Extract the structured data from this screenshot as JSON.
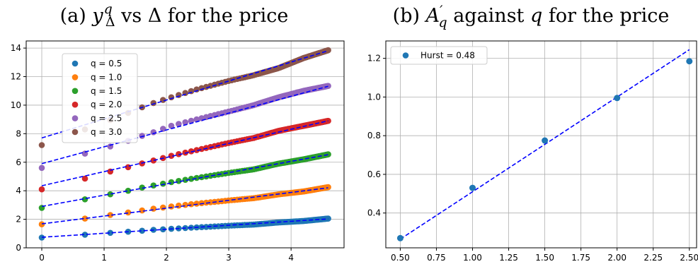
{
  "chart_data": [
    {
      "type": "scatter",
      "title_prefix": "(a) ",
      "title_math": {
        "y": "y",
        "sup": "q",
        "sub": "Δ",
        "mid": " vs ",
        "delta": "Δ",
        "suffix": " for the price"
      },
      "xlim": [
        -0.25,
        4.85
      ],
      "ylim": [
        0,
        14.5
      ],
      "xticks": [
        0,
        1,
        2,
        3,
        4
      ],
      "yticks": [
        0,
        2,
        4,
        6,
        8,
        10,
        12,
        14
      ],
      "grid": true,
      "legend_position": "upper-left",
      "x_points": [
        0,
        0.693,
        1.099,
        1.386,
        1.609,
        1.792,
        1.946,
        2.079,
        2.197,
        2.303,
        2.398,
        2.485,
        2.565,
        2.639,
        2.708,
        2.773,
        2.833,
        2.89,
        2.944,
        2.996,
        3.045,
        3.091,
        3.136,
        3.178,
        3.219,
        3.258,
        3.296,
        3.332,
        3.367,
        3.401,
        3.434,
        3.466,
        3.497,
        3.526,
        3.555,
        3.584,
        3.611,
        3.638,
        3.664,
        3.689,
        3.714,
        3.738,
        3.761,
        3.784,
        3.807,
        3.829,
        3.85,
        3.871,
        3.892,
        3.912,
        3.932,
        3.951,
        3.97,
        3.989,
        4.007,
        4.025,
        4.043,
        4.06,
        4.078,
        4.094,
        4.111,
        4.127,
        4.143,
        4.159,
        4.174,
        4.19,
        4.205,
        4.22,
        4.234,
        4.248,
        4.263,
        4.277,
        4.29,
        4.304,
        4.317,
        4.331,
        4.344,
        4.357,
        4.369,
        4.382,
        4.394,
        4.407,
        4.419,
        4.431,
        4.443,
        4.454,
        4.466,
        4.477,
        4.489,
        4.5,
        4.511,
        4.522,
        4.533,
        4.543,
        4.554,
        4.564,
        4.575,
        4.585,
        4.595
      ],
      "series": [
        {
          "name": "q = 0.5",
          "color": "#1f77b4",
          "curve": [
            [
              0,
              0.72
            ],
            [
              0.693,
              0.92
            ],
            [
              1.099,
              1.05
            ],
            [
              1.386,
              1.13
            ],
            [
              1.609,
              1.2
            ],
            [
              1.792,
              1.26
            ],
            [
              2.079,
              1.33
            ],
            [
              2.485,
              1.43
            ],
            [
              3.0,
              1.55
            ],
            [
              3.4,
              1.63
            ],
            [
              3.8,
              1.78
            ],
            [
              4.2,
              1.88
            ],
            [
              4.595,
              2.05
            ]
          ],
          "fit": {
            "slope": 0.28,
            "intercept": 0.74
          }
        },
        {
          "name": "q = 1.0",
          "color": "#ff7f0e",
          "curve": [
            [
              0,
              1.65
            ],
            [
              0.693,
              2.05
            ],
            [
              1.099,
              2.3
            ],
            [
              1.386,
              2.48
            ],
            [
              1.609,
              2.62
            ],
            [
              1.792,
              2.74
            ],
            [
              2.079,
              2.9
            ],
            [
              2.485,
              3.1
            ],
            [
              3.0,
              3.32
            ],
            [
              3.4,
              3.48
            ],
            [
              3.8,
              3.75
            ],
            [
              4.2,
              3.95
            ],
            [
              4.595,
              4.25
            ]
          ],
          "fit": {
            "slope": 0.55,
            "intercept": 1.68
          }
        },
        {
          "name": "q = 1.5",
          "color": "#2ca02c",
          "curve": [
            [
              0,
              2.8
            ],
            [
              0.693,
              3.4
            ],
            [
              1.099,
              3.75
            ],
            [
              1.386,
              4.0
            ],
            [
              1.609,
              4.22
            ],
            [
              1.792,
              4.37
            ],
            [
              2.079,
              4.6
            ],
            [
              2.485,
              4.9
            ],
            [
              3.0,
              5.25
            ],
            [
              3.4,
              5.5
            ],
            [
              3.8,
              5.9
            ],
            [
              4.2,
              6.2
            ],
            [
              4.595,
              6.55
            ]
          ],
          "fit": {
            "slope": 0.79,
            "intercept": 2.9
          }
        },
        {
          "name": "q = 2.0",
          "color": "#d62728",
          "curve": [
            [
              0,
              4.1
            ],
            [
              0.693,
              4.85
            ],
            [
              1.099,
              5.35
            ],
            [
              1.386,
              5.65
            ],
            [
              1.609,
              5.92
            ],
            [
              1.792,
              6.12
            ],
            [
              2.079,
              6.45
            ],
            [
              2.485,
              6.85
            ],
            [
              3.0,
              7.35
            ],
            [
              3.4,
              7.7
            ],
            [
              3.8,
              8.2
            ],
            [
              4.2,
              8.55
            ],
            [
              4.595,
              8.9
            ]
          ],
          "fit": {
            "slope": 0.99,
            "intercept": 4.35
          }
        },
        {
          "name": "q = 2.5",
          "color": "#9467bd",
          "curve": [
            [
              0,
              5.6
            ],
            [
              0.693,
              6.6
            ],
            [
              1.099,
              7.1
            ],
            [
              1.386,
              7.5
            ],
            [
              1.609,
              7.85
            ],
            [
              1.792,
              8.1
            ],
            [
              2.079,
              8.55
            ],
            [
              2.485,
              9.0
            ],
            [
              3.0,
              9.55
            ],
            [
              3.4,
              10.0
            ],
            [
              3.8,
              10.55
            ],
            [
              4.2,
              11.0
            ],
            [
              4.595,
              11.35
            ]
          ],
          "fit": {
            "slope": 1.18,
            "intercept": 5.9
          }
        },
        {
          "name": "q = 3.0",
          "color": "#8c564b",
          "curve": [
            [
              0,
              7.2
            ],
            [
              0.693,
              8.3
            ],
            [
              1.099,
              8.95
            ],
            [
              1.386,
              9.45
            ],
            [
              1.609,
              9.85
            ],
            [
              1.792,
              10.15
            ],
            [
              2.079,
              10.55
            ],
            [
              2.485,
              11.1
            ],
            [
              3.0,
              11.7
            ],
            [
              3.4,
              12.1
            ],
            [
              3.8,
              12.6
            ],
            [
              4.2,
              13.3
            ],
            [
              4.595,
              13.85
            ]
          ],
          "fit": {
            "slope": 1.33,
            "intercept": 7.7
          }
        }
      ]
    },
    {
      "type": "scatter",
      "title_prefix": "(b) ",
      "title_math": {
        "a": "A",
        "prime": "′",
        "sub": "q",
        "mid": " against ",
        "q": "q",
        "suffix": " for the price"
      },
      "xlim": [
        0.4,
        2.55
      ],
      "ylim": [
        0.22,
        1.29
      ],
      "xticks": [
        0.5,
        0.75,
        1.0,
        1.25,
        1.5,
        1.75,
        2.0,
        2.25,
        2.5
      ],
      "xtick_labels": [
        "0.50",
        "0.75",
        "1.00",
        "1.25",
        "1.50",
        "1.75",
        "2.00",
        "2.25",
        "2.50"
      ],
      "yticks": [
        0.4,
        0.6,
        0.8,
        1.0,
        1.2
      ],
      "ytick_labels": [
        "0.4",
        "0.6",
        "0.8",
        "1.0",
        "1.2"
      ],
      "grid": true,
      "legend_position": "upper-left",
      "series": [
        {
          "name": "Hurst = 0.48",
          "color": "#1f77b4",
          "x": [
            0.5,
            1.0,
            1.5,
            2.0,
            2.5
          ],
          "y": [
            0.27,
            0.53,
            0.775,
            0.995,
            1.185
          ]
        }
      ],
      "fit": {
        "color": "#0000ff",
        "x": [
          0.5,
          2.5
        ],
        "y": [
          0.265,
          1.245
        ]
      }
    }
  ]
}
